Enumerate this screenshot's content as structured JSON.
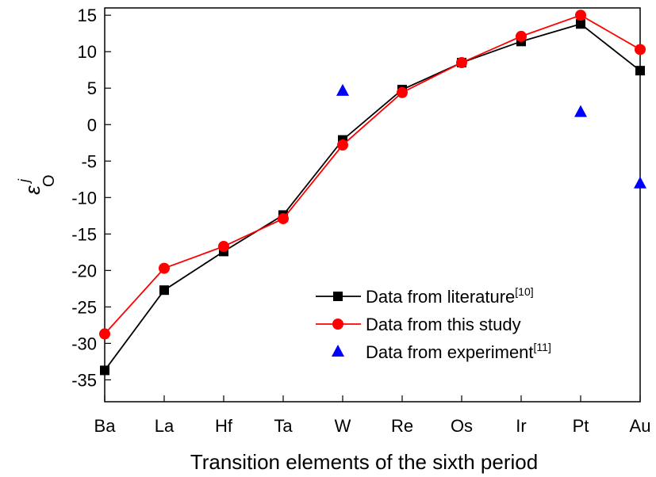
{
  "chart_data": {
    "type": "line",
    "xlabel": "Transition elements of the sixth period",
    "ylabel": "ε",
    "ylabel_sub": "O",
    "ylabel_sup": "j",
    "categories": [
      "Ba",
      "La",
      "Hf",
      "Ta",
      "W",
      "Re",
      "Os",
      "Ir",
      "Pt",
      "Au"
    ],
    "ylim": [
      -38,
      16
    ],
    "yticks": [
      -35,
      -30,
      -25,
      -20,
      -15,
      -10,
      -5,
      0,
      5,
      10,
      15
    ],
    "grid": false,
    "legend_position": "bottom-right",
    "series": [
      {
        "name": "Data from literature",
        "ref": "[10]",
        "marker": "square",
        "color": "#000000",
        "line": true,
        "values": [
          -33.7,
          -22.7,
          -17.4,
          -12.4,
          -2.1,
          4.8,
          8.5,
          11.4,
          13.8,
          7.4
        ]
      },
      {
        "name": "Data from this study",
        "ref": "",
        "marker": "circle",
        "color": "#ff0000",
        "line": true,
        "values": [
          -28.7,
          -19.7,
          -16.7,
          -12.9,
          -2.8,
          4.4,
          8.5,
          12.1,
          15.0,
          10.3
        ]
      },
      {
        "name": "Data from experiment",
        "ref": "[11]",
        "marker": "triangle",
        "color": "#0000ff",
        "line": false,
        "values": [
          null,
          null,
          null,
          null,
          4.6,
          null,
          null,
          null,
          1.7,
          -8.1
        ]
      }
    ]
  }
}
